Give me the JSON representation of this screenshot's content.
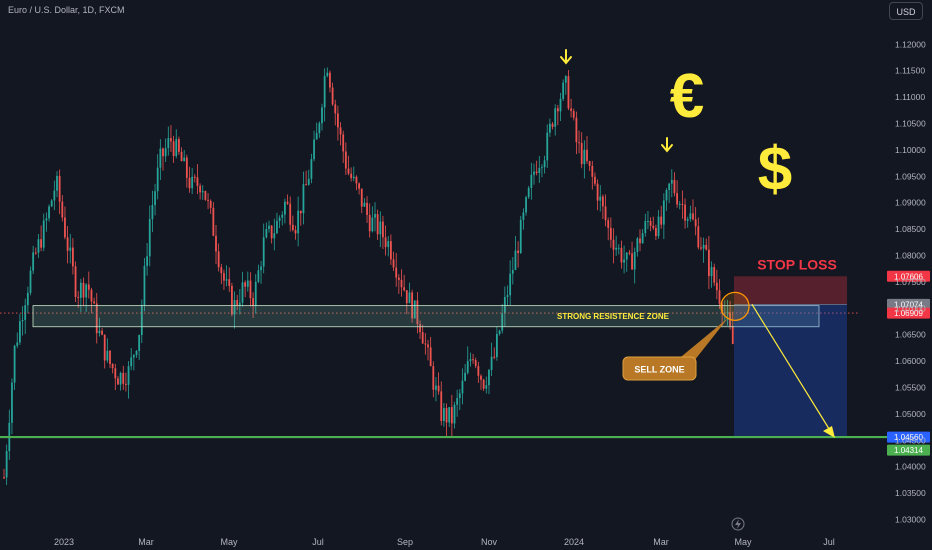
{
  "header": {
    "symbol_title": "Euro / U.S. Dollar, 1D, FXCM",
    "currency_button": "USD"
  },
  "annotations": {
    "resistance_zone": "STRONG RESISTENCE ZONE",
    "stop_loss": "STOP LOSS",
    "sell_zone": "SELL ZONE",
    "euro_symbol": "€",
    "dollar_symbol": "$"
  },
  "colors": {
    "background": "#131722",
    "up_candle": "#26a69a",
    "down_candle": "#ef5350",
    "support_line": "#4caf50",
    "annotation_yellow": "#ffeb3b",
    "stop_loss_text": "#f23645",
    "target_zone": "#1e3a8a"
  },
  "chart_data": {
    "type": "candlestick",
    "title": "Euro / U.S. Dollar, 1D, FXCM",
    "x_tick_labels": [
      "2023",
      "Mar",
      "May",
      "Jul",
      "Sep",
      "Nov",
      "2024",
      "Mar",
      "May",
      "Jul"
    ],
    "y_tick_labels": [
      "1.12000",
      "1.11500",
      "1.11000",
      "1.10500",
      "1.10000",
      "1.09500",
      "1.09000",
      "1.08500",
      "1.08000",
      "1.07500",
      "1.07000",
      "1.06500",
      "1.06000",
      "1.05500",
      "1.05000",
      "1.04500",
      "1.04000",
      "1.03500",
      "1.03000"
    ],
    "ylim": [
      1.028,
      1.1265
    ],
    "price_path": [
      1.038,
      1.062,
      1.072,
      1.08,
      1.086,
      1.094,
      1.083,
      1.073,
      1.075,
      1.066,
      1.06,
      1.057,
      1.058,
      1.066,
      1.087,
      1.098,
      1.102,
      1.098,
      1.093,
      1.094,
      1.086,
      1.076,
      1.07,
      1.074,
      1.072,
      1.083,
      1.085,
      1.09,
      1.086,
      1.093,
      1.102,
      1.117,
      1.105,
      1.096,
      1.092,
      1.087,
      1.085,
      1.082,
      1.076,
      1.071,
      1.067,
      1.058,
      1.05,
      1.049,
      1.055,
      1.062,
      1.056,
      1.06,
      1.07,
      1.079,
      1.088,
      1.097,
      1.1,
      1.109,
      1.112,
      1.101,
      1.097,
      1.092,
      1.085,
      1.081,
      1.078,
      1.083,
      1.087,
      1.085,
      1.094,
      1.09,
      1.087,
      1.082,
      1.076,
      1.071,
      1.063
    ],
    "price_labels": [
      {
        "price": 1.07606,
        "text": "1.07606",
        "color": "#f23645"
      },
      {
        "price": 1.07074,
        "text": "1.07074",
        "color": "#787b86"
      },
      {
        "price": 1.06909,
        "text": "1.06909",
        "color": "#f23645"
      },
      {
        "price": 1.0456,
        "text": "1.04560",
        "color": "#2962ff"
      },
      {
        "price": 1.04314,
        "text": "1.04314",
        "color": "#4caf50"
      }
    ],
    "support_level": 1.0456,
    "dotted_level": 1.06909,
    "resistance_zone": {
      "low": 1.0665,
      "high": 1.0705
    },
    "short_position": {
      "entry": 1.07074,
      "stop": 1.07606,
      "target": 1.0456
    },
    "grid": false
  }
}
